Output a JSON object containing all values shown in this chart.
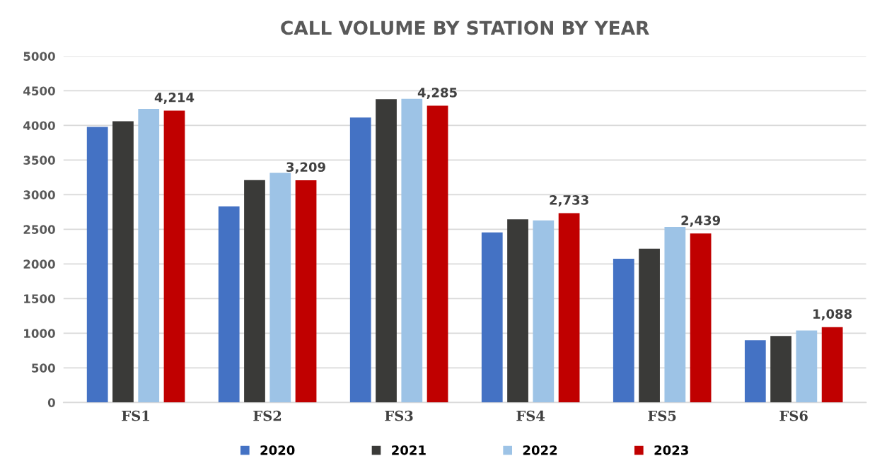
{
  "chart_data": {
    "type": "bar",
    "title": "CALL VOLUME BY STATION BY YEAR",
    "categories": [
      "FS1",
      "FS2",
      "FS3",
      "FS4",
      "FS5",
      "FS6"
    ],
    "series": [
      {
        "name": "2020",
        "color": "#4472c4",
        "values": [
          3980,
          2830,
          4115,
          2455,
          2075,
          900
        ]
      },
      {
        "name": "2021",
        "color": "#3a3a38",
        "values": [
          4060,
          3210,
          4380,
          2645,
          2220,
          960
        ]
      },
      {
        "name": "2022",
        "color": "#9dc3e6",
        "values": [
          4240,
          3315,
          4385,
          2630,
          2535,
          1040
        ]
      },
      {
        "name": "2023",
        "color": "#c00000",
        "values": [
          4214,
          3209,
          4285,
          2733,
          2439,
          1088
        ],
        "value_labels": [
          "4,214",
          "3,209",
          "4,285",
          "2,733",
          "2,439",
          "1,088"
        ]
      }
    ],
    "ylim": [
      0,
      5000
    ],
    "yticks": [
      0,
      500,
      1000,
      1500,
      2000,
      2500,
      3000,
      3500,
      4000,
      4500,
      5000
    ],
    "grid": "y",
    "legend": "bottom"
  }
}
